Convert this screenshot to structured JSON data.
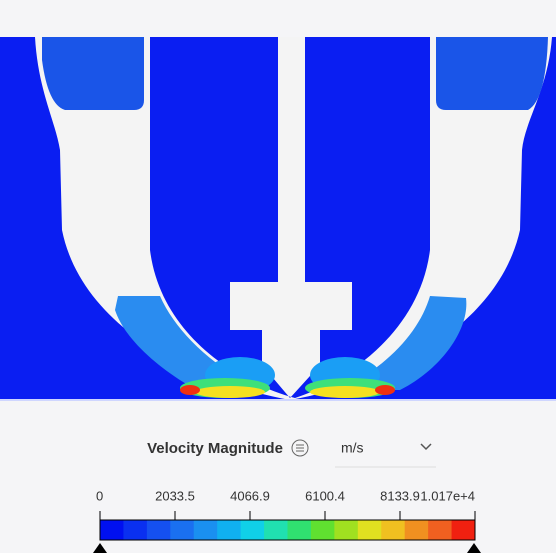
{
  "legend": {
    "title": "Velocity Magnitude",
    "unit": "m/s",
    "ticks": [
      "0",
      "2033.5",
      "4066.9",
      "6100.4",
      "8133.9",
      "1.017e+4"
    ]
  }
}
